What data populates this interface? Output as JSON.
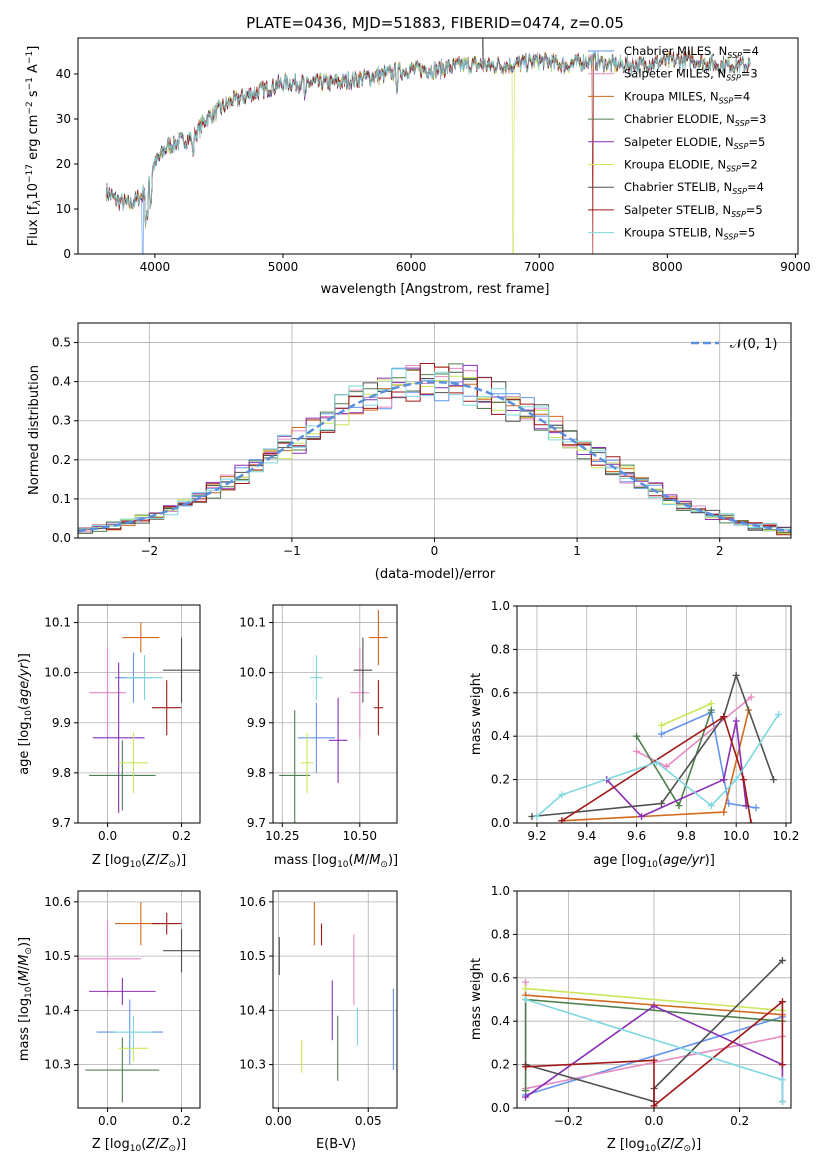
{
  "chart_data": [
    {
      "id": "spectrum",
      "type": "line",
      "title": "PLATE=0436, MJD=51883, FIBERID=0474, z=0.05",
      "xlabel": "wavelength [Angstrom, rest frame]",
      "ylabel": "Flux [f_λ 10^{-17} erg cm^{-2} s^{-1} A^{-1}]",
      "xlim": [
        3400,
        9020
      ],
      "ylim": [
        0,
        48
      ],
      "xticks": [
        4000,
        5000,
        6000,
        7000,
        8000,
        9000
      ],
      "yticks": [
        0,
        10,
        20,
        30,
        40
      ],
      "legend_placement": "upper right",
      "series": [
        {
          "name": "Chabrier MILES, N_SSP=4",
          "color": "#6495ed"
        },
        {
          "name": "Salpeter MILES, N_SSP=3",
          "color": "#e78ac3"
        },
        {
          "name": "Kroupa MILES, N_SSP=4",
          "color": "#d2691e"
        },
        {
          "name": "Chabrier ELODIE, N_SSP=3",
          "color": "#4f7f4f"
        },
        {
          "name": "Salpeter ELODIE, N_SSP=5",
          "color": "#8b2fb5"
        },
        {
          "name": "Kroupa ELODIE, N_SSP=2",
          "color": "#c7e85a"
        },
        {
          "name": "Chabrier STELIB, N_SSP=4",
          "color": "#505050"
        },
        {
          "name": "Salpeter STELIB, N_SSP=5",
          "color": "#a01818"
        },
        {
          "name": "Kroupa STELIB, N_SSP=5",
          "color": "#7fd8df"
        }
      ],
      "continuum": [
        [
          3620,
          14
        ],
        [
          3700,
          12
        ],
        [
          3800,
          11
        ],
        [
          3900,
          13
        ],
        [
          4000,
          20
        ],
        [
          4100,
          24
        ],
        [
          4200,
          25
        ],
        [
          4300,
          26
        ],
        [
          4400,
          30
        ],
        [
          4500,
          32
        ],
        [
          4600,
          34
        ],
        [
          4700,
          35
        ],
        [
          4800,
          36
        ],
        [
          4900,
          37
        ],
        [
          5000,
          38
        ],
        [
          5200,
          38
        ],
        [
          5400,
          38
        ],
        [
          5600,
          39
        ],
        [
          5800,
          40
        ],
        [
          6000,
          41
        ],
        [
          6200,
          41
        ],
        [
          6400,
          42
        ],
        [
          6600,
          42
        ],
        [
          6800,
          42
        ],
        [
          7000,
          43
        ],
        [
          7200,
          42
        ],
        [
          7400,
          43
        ],
        [
          7600,
          42
        ],
        [
          7800,
          42
        ],
        [
          8000,
          43
        ],
        [
          8200,
          43
        ],
        [
          8400,
          42
        ],
        [
          8650,
          42
        ]
      ]
    },
    {
      "id": "residuals",
      "type": "histogram",
      "xlabel": "(data-model)/error",
      "ylabel": "Normed distribution",
      "xlim": [
        -2.5,
        2.5
      ],
      "ylim": [
        0,
        0.55
      ],
      "xticks": [
        -2,
        -1,
        0,
        1,
        2
      ],
      "yticks": [
        0.0,
        0.1,
        0.2,
        0.3,
        0.4,
        0.5
      ],
      "legend": [
        "𝒩(0, 1)"
      ],
      "reference_color": "#5b8fdb",
      "grid": true
    },
    {
      "id": "age-vs-Z",
      "type": "errorbar",
      "xlabel": "Z [log10(Z/Z⊙)]",
      "ylabel": "age [log10(age/yr)]",
      "xlim": [
        -0.08,
        0.25
      ],
      "ylim": [
        9.7,
        10.135
      ],
      "xticks": [
        0.0,
        0.2
      ],
      "yticks": [
        9.7,
        9.8,
        9.9,
        10.0,
        10.1
      ],
      "points": [
        {
          "x": 0.07,
          "xerr": 0.05,
          "y": 9.99,
          "yerr": 0.05,
          "color": "#6495ed"
        },
        {
          "x": 0.0,
          "xerr": 0.05,
          "y": 9.96,
          "yerr": 0.09,
          "color": "#e78ac3"
        },
        {
          "x": 0.09,
          "xerr": 0.05,
          "y": 10.07,
          "yerr": 0.03,
          "color": "#d2691e"
        },
        {
          "x": 0.04,
          "xerr": 0.09,
          "y": 9.795,
          "yerr": 0.07,
          "color": "#4f7f4f"
        },
        {
          "x": 0.03,
          "xerr": 0.07,
          "y": 9.87,
          "yerr": 0.15,
          "color": "#8b2fb5"
        },
        {
          "x": 0.07,
          "xerr": 0.04,
          "y": 9.82,
          "yerr": 0.06,
          "color": "#c7e85a"
        },
        {
          "x": 0.2,
          "xerr": 0.05,
          "y": 10.005,
          "yerr": 0.065,
          "color": "#505050"
        },
        {
          "x": 0.16,
          "xerr": 0.04,
          "y": 9.93,
          "yerr": 0.055,
          "color": "#a01818"
        },
        {
          "x": 0.1,
          "xerr": 0.05,
          "y": 9.99,
          "yerr": 0.045,
          "color": "#7fd8df"
        }
      ]
    },
    {
      "id": "age-vs-mass",
      "type": "errorbar",
      "xlabel": "mass [log10(M/M⊙)]",
      "ylabel": "",
      "xlim": [
        10.22,
        10.62
      ],
      "ylim": [
        9.7,
        10.135
      ],
      "xticks": [
        10.25,
        10.5
      ],
      "yticks": [
        9.7,
        9.8,
        9.9,
        10.0,
        10.1
      ],
      "points": [
        {
          "x": 10.36,
          "xerr": 0.06,
          "y": 9.87,
          "yerr": 0.07,
          "color": "#6495ed"
        },
        {
          "x": 10.5,
          "xerr": 0.03,
          "y": 9.96,
          "yerr": 0.09,
          "color": "#e78ac3"
        },
        {
          "x": 10.56,
          "xerr": 0.03,
          "y": 10.07,
          "yerr": 0.055,
          "color": "#d2691e"
        },
        {
          "x": 10.29,
          "xerr": 0.05,
          "y": 9.795,
          "yerr": 0.13,
          "color": "#4f7f4f"
        },
        {
          "x": 10.43,
          "xerr": 0.03,
          "y": 9.865,
          "yerr": 0.085,
          "color": "#8b2fb5"
        },
        {
          "x": 10.33,
          "xerr": 0.02,
          "y": 9.82,
          "yerr": 0.06,
          "color": "#c7e85a"
        },
        {
          "x": 10.51,
          "xerr": 0.03,
          "y": 10.005,
          "yerr": 0.065,
          "color": "#505050"
        },
        {
          "x": 10.56,
          "xerr": 0.015,
          "y": 9.93,
          "yerr": 0.055,
          "color": "#a01818"
        },
        {
          "x": 10.36,
          "xerr": 0.02,
          "y": 9.99,
          "yerr": 0.045,
          "color": "#7fd8df"
        }
      ]
    },
    {
      "id": "weight-vs-age",
      "type": "line",
      "xlabel": "age [log10(age/yr)]",
      "ylabel": "mass weight",
      "xlim": [
        9.12,
        10.22
      ],
      "ylim": [
        0.0,
        1.0
      ],
      "xticks": [
        9.2,
        9.4,
        9.6,
        9.8,
        10.0,
        10.2
      ],
      "yticks": [
        0.0,
        0.2,
        0.4,
        0.6,
        0.8,
        1.0
      ],
      "series": [
        {
          "color": "#6495ed",
          "x": [
            9.7,
            9.9,
            9.97,
            10.08
          ],
          "y": [
            0.41,
            0.51,
            0.09,
            0.07
          ]
        },
        {
          "color": "#e78ac3",
          "x": [
            9.6,
            9.72,
            10.06
          ],
          "y": [
            0.33,
            0.26,
            0.58
          ]
        },
        {
          "color": "#d2691e",
          "x": [
            9.3,
            9.95,
            10.05
          ],
          "y": [
            0.01,
            0.05,
            0.52
          ]
        },
        {
          "color": "#4f7f4f",
          "x": [
            9.6,
            9.77,
            9.9
          ],
          "y": [
            0.4,
            0.08,
            0.52
          ]
        },
        {
          "color": "#8b2fb5",
          "x": [
            9.48,
            9.62,
            9.95,
            10.0,
            10.04
          ],
          "y": [
            0.2,
            0.03,
            0.2,
            0.47,
            0.08
          ]
        },
        {
          "color": "#c7e85a",
          "x": [
            9.7,
            9.9
          ],
          "y": [
            0.45,
            0.55
          ]
        },
        {
          "color": "#505050",
          "x": [
            9.18,
            9.7,
            9.95,
            10.0,
            10.15
          ],
          "y": [
            0.03,
            0.09,
            0.49,
            0.68,
            0.2
          ]
        },
        {
          "color": "#a01818",
          "x": [
            9.3,
            9.95,
            10.03,
            10.06
          ],
          "y": [
            0.01,
            0.49,
            0.2,
            0.0
          ]
        },
        {
          "color": "#7fd8df",
          "x": [
            9.2,
            9.3,
            9.68,
            9.9,
            10.0,
            10.17
          ],
          "y": [
            0.03,
            0.13,
            0.28,
            0.08,
            0.2,
            0.5
          ]
        }
      ]
    },
    {
      "id": "mass-vs-Z",
      "type": "errorbar",
      "xlabel": "Z [log10(Z/Z⊙)]",
      "ylabel": "mass [log10(M/M⊙)]",
      "xlim": [
        -0.08,
        0.25
      ],
      "ylim": [
        10.22,
        10.62
      ],
      "xticks": [
        0.0,
        0.2
      ],
      "yticks": [
        10.3,
        10.4,
        10.5,
        10.6
      ],
      "points": [
        {
          "x": 0.06,
          "xerr": 0.09,
          "y": 10.36,
          "yerr": 0.06,
          "color": "#6495ed"
        },
        {
          "x": 0.0,
          "xerr": 0.09,
          "y": 10.495,
          "yerr": 0.07,
          "color": "#e78ac3"
        },
        {
          "x": 0.09,
          "xerr": 0.07,
          "y": 10.56,
          "yerr": 0.04,
          "color": "#d2691e"
        },
        {
          "x": 0.04,
          "xerr": 0.1,
          "y": 10.29,
          "yerr": 0.06,
          "color": "#4f7f4f"
        },
        {
          "x": 0.04,
          "xerr": 0.09,
          "y": 10.435,
          "yerr": 0.025,
          "color": "#8b2fb5"
        },
        {
          "x": 0.07,
          "xerr": 0.04,
          "y": 10.33,
          "yerr": 0.025,
          "color": "#c7e85a"
        },
        {
          "x": 0.2,
          "xerr": 0.05,
          "y": 10.51,
          "yerr": 0.04,
          "color": "#505050"
        },
        {
          "x": 0.16,
          "xerr": 0.04,
          "y": 10.56,
          "yerr": 0.02,
          "color": "#a01818"
        },
        {
          "x": 0.07,
          "xerr": 0.05,
          "y": 10.36,
          "yerr": 0.03,
          "color": "#7fd8df"
        }
      ]
    },
    {
      "id": "mass-vs-ebv",
      "type": "errorbar",
      "xlabel": "E(B-V)",
      "ylabel": "",
      "xlim": [
        -0.003,
        0.066
      ],
      "ylim": [
        10.22,
        10.62
      ],
      "xticks": [
        0.0,
        0.05
      ],
      "yticks": [
        10.3,
        10.4,
        10.5,
        10.6
      ],
      "points": [
        {
          "x": 0.064,
          "y": 10.365,
          "yerr": 0.075,
          "color": "#6495ed"
        },
        {
          "x": 0.042,
          "y": 10.475,
          "yerr": 0.065,
          "color": "#e78ac3"
        },
        {
          "x": 0.02,
          "y": 10.56,
          "yerr": 0.04,
          "color": "#d2691e"
        },
        {
          "x": 0.033,
          "y": 10.33,
          "yerr": 0.06,
          "color": "#4f7f4f"
        },
        {
          "x": 0.03,
          "y": 10.4,
          "yerr": 0.055,
          "color": "#8b2fb5"
        },
        {
          "x": 0.013,
          "y": 10.315,
          "yerr": 0.03,
          "color": "#c7e85a"
        },
        {
          "x": 0.0005,
          "y": 10.5,
          "yerr": 0.035,
          "color": "#505050"
        },
        {
          "x": 0.024,
          "y": 10.54,
          "yerr": 0.02,
          "color": "#a01818"
        },
        {
          "x": 0.044,
          "y": 10.37,
          "yerr": 0.035,
          "color": "#7fd8df"
        }
      ]
    },
    {
      "id": "weight-vs-Z",
      "type": "line",
      "xlabel": "Z [log10(Z/Z⊙)]",
      "ylabel": "mass weight",
      "xlim": [
        -0.32,
        0.32
      ],
      "ylim": [
        0.0,
        1.0
      ],
      "xticks": [
        -0.2,
        0.0,
        0.2
      ],
      "yticks": [
        0.0,
        0.2,
        0.4,
        0.6,
        0.8,
        1.0
      ],
      "series": [
        {
          "color": "#6495ed",
          "x": [
            -0.3,
            0.3
          ],
          "y": [
            0.06,
            0.42
          ]
        },
        {
          "color": "#e78ac3",
          "x": [
            -0.3,
            -0.3,
            0.3
          ],
          "y": [
            0.58,
            0.09,
            0.33
          ]
        },
        {
          "color": "#d2691e",
          "x": [
            -0.3,
            0.3
          ],
          "y": [
            0.52,
            0.43
          ]
        },
        {
          "color": "#4f7f4f",
          "x": [
            -0.3,
            -0.3,
            0.3
          ],
          "y": [
            0.08,
            0.5,
            0.4
          ]
        },
        {
          "color": "#8b2fb5",
          "x": [
            -0.3,
            0.0,
            0.3,
            0.3
          ],
          "y": [
            0.05,
            0.47,
            0.2,
            0.03
          ]
        },
        {
          "color": "#c7e85a",
          "x": [
            -0.3,
            0.3
          ],
          "y": [
            0.55,
            0.45
          ]
        },
        {
          "color": "#505050",
          "x": [
            -0.3,
            0.0,
            0.0,
            0.3
          ],
          "y": [
            0.2,
            0.03,
            0.09,
            0.68
          ]
        },
        {
          "color": "#a01818",
          "x": [
            -0.3,
            0.0,
            0.0,
            0.3,
            0.3
          ],
          "y": [
            0.19,
            0.22,
            0.01,
            0.49,
            0.2
          ]
        },
        {
          "color": "#7fd8df",
          "x": [
            -0.3,
            0.3,
            0.3
          ],
          "y": [
            0.5,
            0.13,
            0.03
          ]
        }
      ]
    }
  ]
}
